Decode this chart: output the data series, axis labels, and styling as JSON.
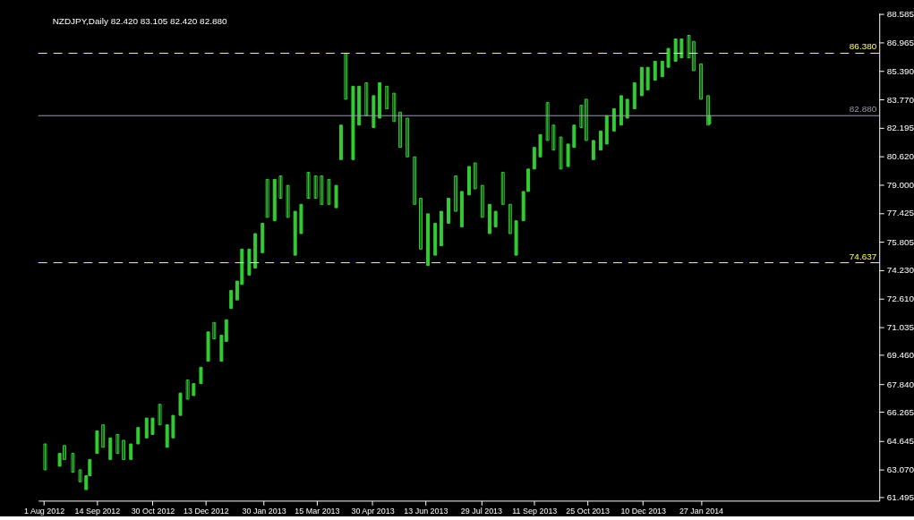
{
  "chart_data": {
    "type": "candlestick",
    "title": "NZDJPY,Daily  82.420 83.105 82.420 82.880",
    "color": "#33cc33",
    "x": [
      "2012-08-02",
      "2012-08-14",
      "2012-08-18",
      "2012-08-25",
      "2012-08-31",
      "2012-09-05",
      "2012-09-08",
      "2012-09-14",
      "2012-09-19",
      "2012-09-25",
      "2012-10-01",
      "2012-10-06",
      "2012-10-12",
      "2012-10-18",
      "2012-10-25",
      "2012-10-30",
      "2012-11-05",
      "2012-11-11",
      "2012-11-16",
      "2012-11-22",
      "2012-11-28",
      "2012-12-03",
      "2012-12-09",
      "2012-12-15",
      "2012-12-20",
      "2012-12-26",
      "2012-12-30",
      "2013-01-03",
      "2013-01-08",
      "2013-01-12",
      "2013-01-18",
      "2013-01-23",
      "2013-01-29",
      "2013-02-02",
      "2013-02-08",
      "2013-02-13",
      "2013-02-19",
      "2013-02-25",
      "2013-03-02",
      "2013-03-08",
      "2013-03-14",
      "2013-03-19",
      "2013-03-25",
      "2013-03-31",
      "2013-04-04",
      "2013-04-08",
      "2013-04-14",
      "2013-04-19",
      "2013-04-25",
      "2013-05-01",
      "2013-05-06",
      "2013-05-12",
      "2013-05-18",
      "2013-05-23",
      "2013-05-29",
      "2013-06-04",
      "2013-06-09",
      "2013-06-15",
      "2013-06-21",
      "2013-06-26",
      "2013-07-02",
      "2013-07-08",
      "2013-07-13",
      "2013-07-19",
      "2013-07-24",
      "2013-07-30",
      "2013-08-05",
      "2013-08-10",
      "2013-08-16",
      "2013-08-22",
      "2013-08-27",
      "2013-09-02",
      "2013-09-06",
      "2013-09-11",
      "2013-09-16",
      "2013-09-22",
      "2013-09-27",
      "2013-10-03",
      "2013-10-09",
      "2013-10-14",
      "2013-10-20",
      "2013-10-24",
      "2013-10-30",
      "2013-11-05",
      "2013-11-10",
      "2013-11-16",
      "2013-11-22",
      "2013-11-27",
      "2013-12-03",
      "2013-12-09",
      "2013-12-14",
      "2013-12-20",
      "2013-12-26",
      "2013-12-31",
      "2014-01-06",
      "2014-01-11",
      "2014-01-17",
      "2014-01-21",
      "2014-01-27",
      "2014-02-02",
      "2014-02-03"
    ],
    "ohlc": [
      [
        64.48,
        64.48,
        63.03,
        63.03
      ],
      [
        63.23,
        63.95,
        63.23,
        63.95
      ],
      [
        64.39,
        64.39,
        63.61,
        63.61
      ],
      [
        63.95,
        63.95,
        62.89,
        62.89
      ],
      [
        63.03,
        63.03,
        62.36,
        62.36
      ],
      [
        61.92,
        62.7,
        61.92,
        62.7
      ],
      [
        62.7,
        63.61,
        62.7,
        63.61
      ],
      [
        63.95,
        65.21,
        63.95,
        65.21
      ],
      [
        65.55,
        65.55,
        64.29,
        64.29
      ],
      [
        63.61,
        64.82,
        63.61,
        64.82
      ],
      [
        65.01,
        65.01,
        63.95,
        63.95
      ],
      [
        64.68,
        64.68,
        63.61,
        63.61
      ],
      [
        63.61,
        64.48,
        63.61,
        64.48
      ],
      [
        64.48,
        65.4,
        64.48,
        65.4
      ],
      [
        64.82,
        65.93,
        64.82,
        65.93
      ],
      [
        65.01,
        65.93,
        65.01,
        65.93
      ],
      [
        66.7,
        66.7,
        65.55,
        65.55
      ],
      [
        64.29,
        65.55,
        64.29,
        65.55
      ],
      [
        64.82,
        66.08,
        64.82,
        66.08
      ],
      [
        66.08,
        67.33,
        66.08,
        67.33
      ],
      [
        68.06,
        68.06,
        66.99,
        66.99
      ],
      [
        67.19,
        67.86,
        67.19,
        67.86
      ],
      [
        67.86,
        68.78,
        67.86,
        68.78
      ],
      [
        69.12,
        70.76,
        69.12,
        70.76
      ],
      [
        71.29,
        71.29,
        70.37,
        70.37
      ],
      [
        69.12,
        70.57,
        69.12,
        70.57
      ],
      [
        70.23,
        71.44,
        70.23,
        71.44
      ],
      [
        72.07,
        73.08,
        72.07,
        73.08
      ],
      [
        72.55,
        73.61,
        72.55,
        73.61
      ],
      [
        73.42,
        75.4,
        73.42,
        75.4
      ],
      [
        73.95,
        75.4,
        73.95,
        75.4
      ],
      [
        74.34,
        76.27,
        74.34,
        76.27
      ],
      [
        75.2,
        76.85,
        75.2,
        76.85
      ],
      [
        79.31,
        79.31,
        77.18,
        77.18
      ],
      [
        76.99,
        79.31,
        76.99,
        79.31
      ],
      [
        79.5,
        79.5,
        78.25,
        78.25
      ],
      [
        78.97,
        78.97,
        77.18,
        77.18
      ],
      [
        75.06,
        77.52,
        75.06,
        77.52
      ],
      [
        76.27,
        77.91,
        76.27,
        77.91
      ],
      [
        79.7,
        79.7,
        78.25,
        78.25
      ],
      [
        79.5,
        79.5,
        78.25,
        78.25
      ],
      [
        79.5,
        79.5,
        77.91,
        77.91
      ],
      [
        79.31,
        79.31,
        77.91,
        77.91
      ],
      [
        77.72,
        78.97,
        77.72,
        78.97
      ],
      [
        80.42,
        82.35,
        80.42,
        82.35
      ],
      [
        86.38,
        86.38,
        83.8,
        83.8
      ],
      [
        80.42,
        84.53,
        80.42,
        84.53
      ],
      [
        82.35,
        84.53,
        82.35,
        84.53
      ],
      [
        84.72,
        84.72,
        82.88,
        82.88
      ],
      [
        82.21,
        84.0,
        82.21,
        84.0
      ],
      [
        82.74,
        84.72,
        82.74,
        84.72
      ],
      [
        84.53,
        84.53,
        83.27,
        83.27
      ],
      [
        84.14,
        84.14,
        82.55,
        82.55
      ],
      [
        83.08,
        83.08,
        81.1,
        81.1
      ],
      [
        82.74,
        82.74,
        80.57,
        80.57
      ],
      [
        80.57,
        80.57,
        77.91,
        77.91
      ],
      [
        78.25,
        78.25,
        75.4,
        75.4
      ],
      [
        74.48,
        77.38,
        74.48,
        77.38
      ],
      [
        75.06,
        76.85,
        75.06,
        76.85
      ],
      [
        75.59,
        77.52,
        75.59,
        77.52
      ],
      [
        76.85,
        78.25,
        76.85,
        78.25
      ],
      [
        79.5,
        79.5,
        77.52,
        77.52
      ],
      [
        76.65,
        78.63,
        76.65,
        78.63
      ],
      [
        78.44,
        80.03,
        78.44,
        80.03
      ],
      [
        80.23,
        80.23,
        78.78,
        78.78
      ],
      [
        78.97,
        78.97,
        77.18,
        77.18
      ],
      [
        76.27,
        77.91,
        76.27,
        77.91
      ],
      [
        76.65,
        77.52,
        76.65,
        77.52
      ],
      [
        79.7,
        79.7,
        77.91,
        77.91
      ],
      [
        77.91,
        77.91,
        76.27,
        76.27
      ],
      [
        75.06,
        76.99,
        75.06,
        76.99
      ],
      [
        76.99,
        78.63,
        76.99,
        78.63
      ],
      [
        78.63,
        79.89,
        78.63,
        79.89
      ],
      [
        79.89,
        81.1,
        79.89,
        81.1
      ],
      [
        80.57,
        81.82,
        80.57,
        81.82
      ],
      [
        83.61,
        83.61,
        81.49,
        81.49
      ],
      [
        82.35,
        82.35,
        80.95,
        80.95
      ],
      [
        81.68,
        81.68,
        79.89,
        79.89
      ],
      [
        80.03,
        81.29,
        80.03,
        81.29
      ],
      [
        81.1,
        82.35,
        81.1,
        82.35
      ],
      [
        83.46,
        83.46,
        82.21,
        82.21
      ],
      [
        83.8,
        83.8,
        81.49,
        81.49
      ],
      [
        80.42,
        81.49,
        80.42,
        81.49
      ],
      [
        80.95,
        82.02,
        80.95,
        82.02
      ],
      [
        81.29,
        82.88,
        81.29,
        82.88
      ],
      [
        82.02,
        83.27,
        82.02,
        83.27
      ],
      [
        82.35,
        84.0,
        82.35,
        84.0
      ],
      [
        82.74,
        83.8,
        82.74,
        83.8
      ],
      [
        83.27,
        84.72,
        83.27,
        84.72
      ],
      [
        84.0,
        85.59,
        84.0,
        85.59
      ],
      [
        84.33,
        85.59,
        84.33,
        85.59
      ],
      [
        84.87,
        85.93,
        84.87,
        85.93
      ],
      [
        85.06,
        85.93,
        85.06,
        85.93
      ],
      [
        85.59,
        86.65,
        85.59,
        86.65
      ],
      [
        85.93,
        87.18,
        85.93,
        87.18
      ],
      [
        86.12,
        87.18,
        86.12,
        87.18
      ],
      [
        87.38,
        87.38,
        86.12,
        86.12
      ],
      [
        87.04,
        87.04,
        85.4,
        85.4
      ],
      [
        85.78,
        85.78,
        83.8,
        83.8
      ],
      [
        84.0,
        84.0,
        82.35,
        82.35
      ],
      [
        82.42,
        83.105,
        82.42,
        82.88
      ]
    ],
    "xlim": [
      "2012-07-31",
      "2014-06-20"
    ],
    "xticks": [
      {
        "value": "2012-08-01",
        "label": "1 Aug 2012"
      },
      {
        "value": "2012-09-14",
        "label": "14 Sep 2012"
      },
      {
        "value": "2012-10-30",
        "label": "30 Oct 2012"
      },
      {
        "value": "2012-12-13",
        "label": "13 Dec 2012"
      },
      {
        "value": "2013-01-30",
        "label": "30 Jan 2013"
      },
      {
        "value": "2013-03-15",
        "label": "15 Mar 2013"
      },
      {
        "value": "2013-04-30",
        "label": "30 Apr 2013"
      },
      {
        "value": "2013-06-13",
        "label": "13 Jun 2013"
      },
      {
        "value": "2013-07-29",
        "label": "29 Jul 2013"
      },
      {
        "value": "2013-09-11",
        "label": "11 Sep 2013"
      },
      {
        "value": "2013-10-25",
        "label": "25 Oct 2013"
      },
      {
        "value": "2013-12-10",
        "label": "10 Dec 2013"
      },
      {
        "value": "2014-01-27",
        "label": "27 Jan 2014"
      }
    ],
    "ylim": [
      61.3,
      88.63
    ],
    "yticks": [
      88.585,
      86.965,
      {
        "value": 85.39,
        "label": "85.390"
      },
      {
        "value": 83.77,
        "label": "83.770"
      },
      82.195,
      {
        "value": 80.62,
        "label": "80.620"
      },
      {
        "value": 79,
        "label": "79.000"
      },
      77.425,
      75.805,
      {
        "value": 74.23,
        "label": "74.230"
      },
      {
        "value": 72.61,
        "label": "72.610"
      },
      71.035,
      {
        "value": 69.46,
        "label": "69.460"
      },
      {
        "value": 67.84,
        "label": "67.840"
      },
      66.265,
      64.645,
      {
        "value": 63.07,
        "label": "63.070"
      },
      61.495
    ],
    "ref_lines": [
      {
        "axis": "y",
        "value": 86.38,
        "label": "86.380",
        "color": "#ffff66",
        "line_style": "dashed"
      },
      {
        "axis": "y",
        "value": 74.637,
        "label": "74.637",
        "color": "#ffff66",
        "line_style": "dashed"
      },
      {
        "axis": "y",
        "value": 82.88,
        "label": "82.880",
        "color": "#9a9ab0",
        "line_style": "solid"
      }
    ],
    "grid": false
  }
}
